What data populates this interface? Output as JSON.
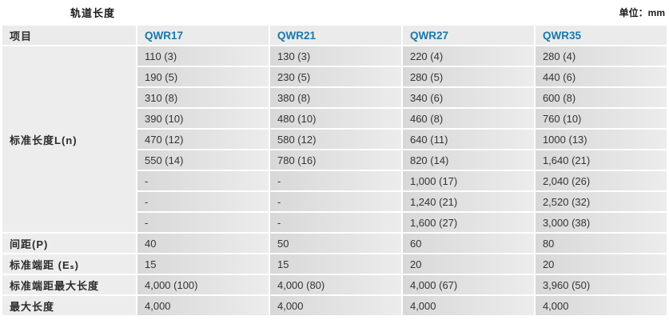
{
  "title": "轨道长度",
  "unit_label": "单位：mm",
  "colors": {
    "model_header_blue": "#1878ab",
    "label_cell_gray": "#ededed",
    "value_cell_gray": "#d8d8d8"
  },
  "table": {
    "item_header": "项目",
    "columns": [
      "QWR17",
      "QWR21",
      "QWR27",
      "QWR35"
    ],
    "standard_length": {
      "label": "标准长度L(n)",
      "rows": [
        [
          "110 (3)",
          "130 (3)",
          "220 (4)",
          "280 (4)"
        ],
        [
          "190 (5)",
          "230 (5)",
          "280 (5)",
          "440 (6)"
        ],
        [
          "310 (8)",
          "380 (8)",
          "340 (6)",
          "600 (8)"
        ],
        [
          "390 (10)",
          "480 (10)",
          "460 (8)",
          "760 (10)"
        ],
        [
          "470 (12)",
          "580 (12)",
          "640 (11)",
          "1000 (13)"
        ],
        [
          "550 (14)",
          "780 (16)",
          "820 (14)",
          "1,640 (21)"
        ],
        [
          "-",
          "-",
          "1,000 (17)",
          "2,040 (26)"
        ],
        [
          "-",
          "-",
          "1,240 (21)",
          "2,520 (32)"
        ],
        [
          "-",
          "-",
          "1,600 (27)",
          "3,000 (38)"
        ]
      ]
    },
    "bottom_rows": [
      {
        "label": "间距(P)",
        "values": [
          "40",
          "50",
          "60",
          "80"
        ]
      },
      {
        "label": "标准端距 (Eₛ)",
        "values": [
          "15",
          "15",
          "20",
          "20"
        ]
      },
      {
        "label": "标准端距最大长度",
        "values": [
          "4,000 (100)",
          "4,000 (80)",
          "4,000 (67)",
          "3,960 (50)"
        ]
      },
      {
        "label": "最大长度",
        "values": [
          "4,000",
          "4,000",
          "4,000",
          "4,000"
        ]
      }
    ]
  }
}
